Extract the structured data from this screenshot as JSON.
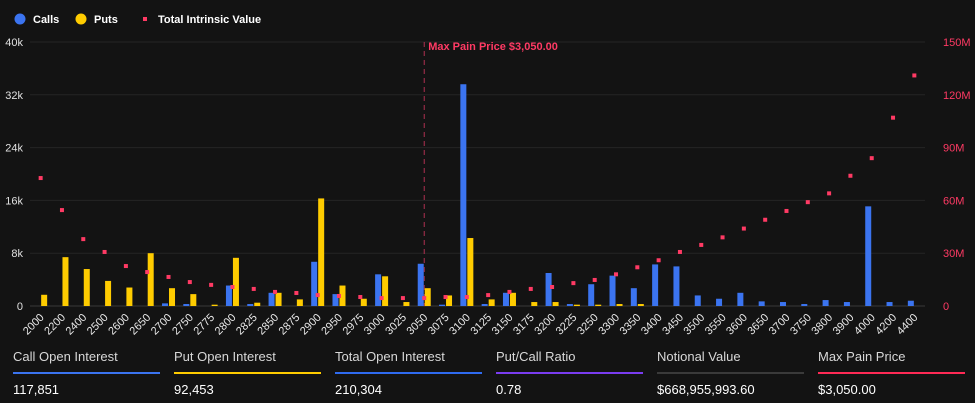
{
  "colors": {
    "calls": "#3b74f0",
    "puts": "#ffcc00",
    "intrinsic": "#ff3a64",
    "background": "#131313"
  },
  "chart_data": {
    "type": "bar",
    "legend_position": "top-left",
    "grid": true,
    "categories": [
      "2000",
      "2200",
      "2400",
      "2500",
      "2600",
      "2650",
      "2700",
      "2750",
      "2775",
      "2800",
      "2825",
      "2850",
      "2875",
      "2900",
      "2950",
      "2975",
      "3000",
      "3025",
      "3050",
      "3075",
      "3100",
      "3125",
      "3150",
      "3175",
      "3200",
      "3225",
      "3250",
      "3300",
      "3350",
      "3400",
      "3450",
      "3500",
      "3550",
      "3600",
      "3650",
      "3700",
      "3750",
      "3800",
      "3900",
      "4000",
      "4200",
      "4400"
    ],
    "series": [
      {
        "name": "Calls",
        "type": "bar",
        "axis": "left",
        "values": [
          0,
          0,
          0,
          0,
          0,
          0,
          400,
          300,
          0,
          3100,
          300,
          2000,
          0,
          6700,
          1800,
          0,
          4800,
          0,
          6400,
          200,
          33600,
          300,
          2000,
          0,
          5000,
          300,
          3300,
          4600,
          2700,
          6300,
          6000,
          1600,
          1100,
          2000,
          700,
          600,
          300,
          900,
          600,
          15100,
          600,
          800
        ]
      },
      {
        "name": "Puts",
        "type": "bar",
        "axis": "left",
        "values": [
          1700,
          7400,
          5600,
          3800,
          2800,
          8000,
          2700,
          1800,
          200,
          7300,
          500,
          2000,
          1000,
          16300,
          3100,
          1100,
          4500,
          600,
          2700,
          1600,
          10300,
          1000,
          2000,
          600,
          600,
          200,
          200,
          300,
          300,
          0,
          0,
          0,
          0,
          0,
          0,
          0,
          0,
          0,
          0,
          0,
          0,
          0
        ]
      },
      {
        "name": "Total Intrinsic Value",
        "type": "scatter",
        "axis": "right",
        "values": [
          72.7,
          54.5,
          38,
          30.7,
          22.7,
          19.3,
          16.5,
          13.6,
          12,
          10.8,
          9.7,
          8,
          7.4,
          6.2,
          5.7,
          5.1,
          4.5,
          4.5,
          4.5,
          5.1,
          5.1,
          6.2,
          8,
          9.7,
          10.8,
          13,
          14.8,
          18,
          22,
          26,
          30.7,
          34.7,
          39,
          44,
          49,
          54,
          59,
          64,
          74,
          84,
          107,
          131
        ]
      }
    ],
    "y_left": {
      "range": [
        0,
        40000
      ],
      "ticks": [
        {
          "v": 0,
          "label": "0"
        },
        {
          "v": 8000,
          "label": "8k"
        },
        {
          "v": 16000,
          "label": "16k"
        },
        {
          "v": 24000,
          "label": "24k"
        },
        {
          "v": 32000,
          "label": "32k"
        },
        {
          "v": 40000,
          "label": "40k"
        }
      ]
    },
    "y_right": {
      "range": [
        0,
        150
      ],
      "unit": "M",
      "ticks": [
        {
          "v": 0,
          "label": "0"
        },
        {
          "v": 30,
          "label": "30M"
        },
        {
          "v": 60,
          "label": "60M"
        },
        {
          "v": 90,
          "label": "90M"
        },
        {
          "v": 120,
          "label": "120M"
        },
        {
          "v": 150,
          "label": "150M"
        }
      ]
    },
    "annotation": {
      "category": "3050",
      "label": "Max Pain Price $3,050.00"
    }
  },
  "stats": [
    {
      "label": "Call Open Interest",
      "value": "117,851",
      "color": "#3b74f0"
    },
    {
      "label": "Put Open Interest",
      "value": "92,453",
      "color": "#ffcc00"
    },
    {
      "label": "Total Open Interest",
      "value": "210,304",
      "color": "#2f6bf0"
    },
    {
      "label": "Put/Call Ratio",
      "value": "0.78",
      "color": "#7a3cf0"
    },
    {
      "label": "Notional Value",
      "value": "$668,955,993.60",
      "color": "#3a3a3a"
    },
    {
      "label": "Max Pain Price",
      "value": "$3,050.00",
      "color": "#ff2a55"
    }
  ]
}
